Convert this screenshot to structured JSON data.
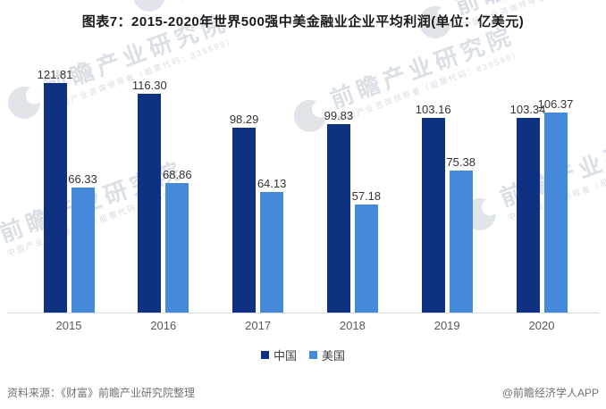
{
  "title": "图表7：2015-2020年世界500强中美金融业企业平均利润(单位：亿美元)",
  "chart_data": {
    "type": "bar",
    "title": "图表7：2015-2020年世界500强中美金融业企业平均利润(单位：亿美元)",
    "unit": "亿美元",
    "categories": [
      "2015",
      "2016",
      "2017",
      "2018",
      "2019",
      "2020"
    ],
    "series": [
      {
        "name": "中国",
        "color": "#0F3181",
        "values": [
          121.81,
          116.3,
          98.29,
          99.83,
          103.16,
          103.34
        ]
      },
      {
        "name": "美国",
        "color": "#4589DB",
        "values": [
          66.33,
          68.86,
          64.13,
          57.18,
          75.38,
          106.37
        ]
      }
    ],
    "ylim": [
      0,
      130
    ],
    "grid": false,
    "value_labels": true,
    "legend_position": "bottom"
  },
  "legend": {
    "items": [
      {
        "label": "中国",
        "color": "#0F3181"
      },
      {
        "label": "美国",
        "color": "#4589DB"
      }
    ]
  },
  "footer": {
    "source": "资料来源：《财富》前瞻产业研究院整理",
    "credit": "@前瞻经济学人APP"
  },
  "watermark": {
    "text": "前瞻产业研究院",
    "subtext": "中国产业咨询领导者（股票代码：839599）"
  }
}
